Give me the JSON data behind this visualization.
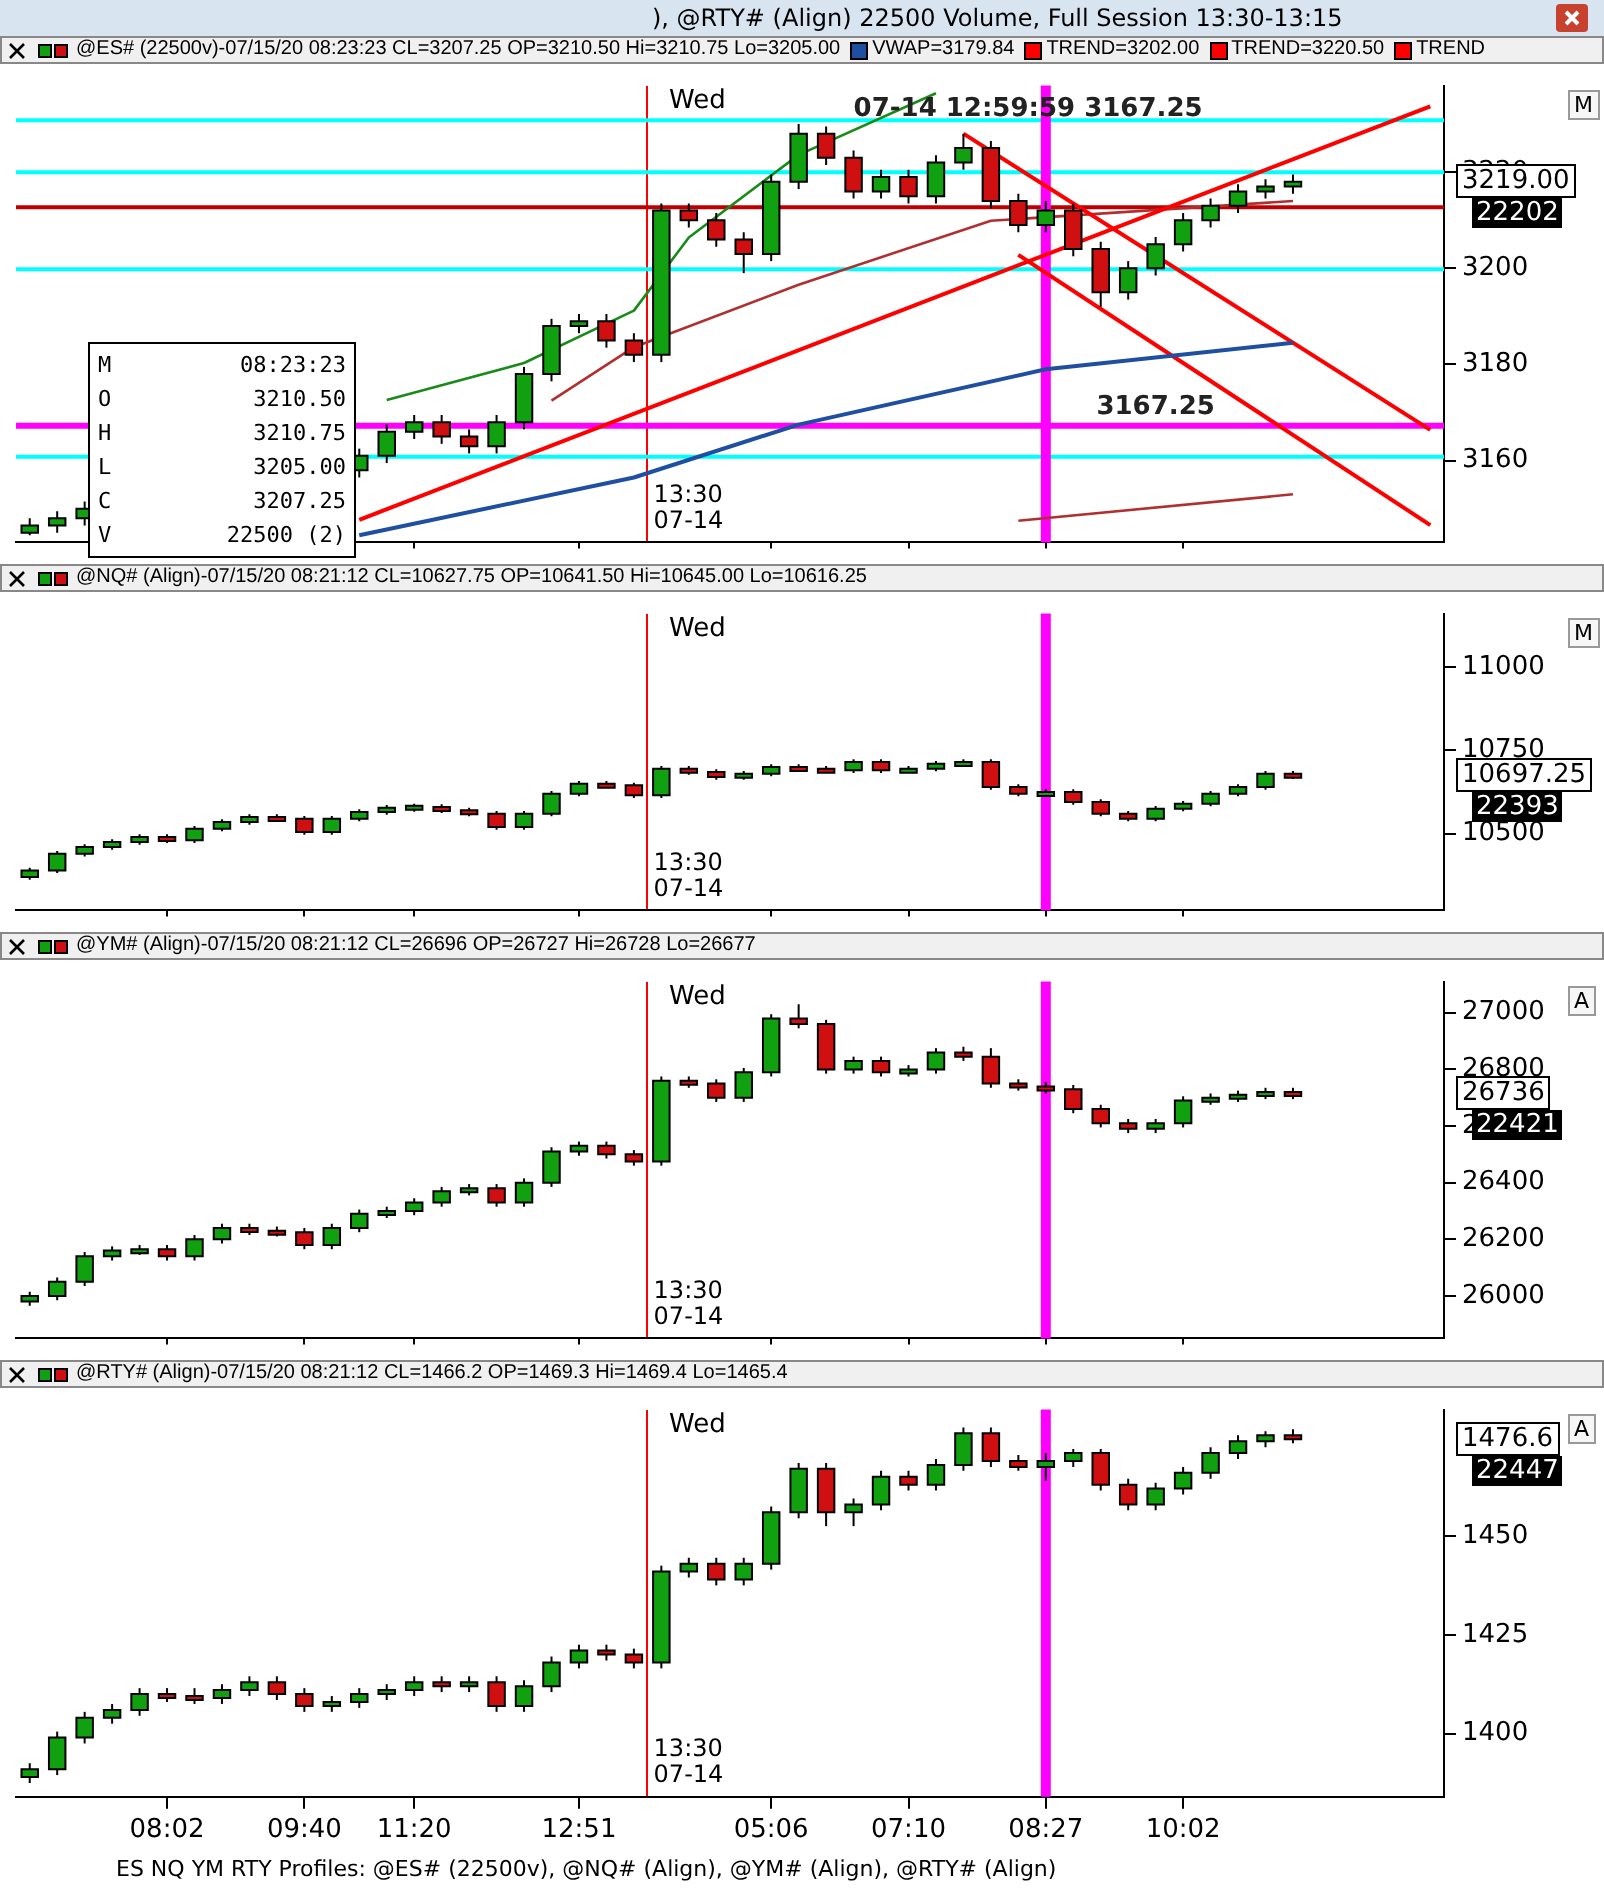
{
  "chart_data": [
    {
      "type": "candlestick",
      "title": "), @RTY# (Align) 22500 Volume, Full Session 13:30-13:15",
      "subtitle": "@ES# (22500v)-07/15/20 08:23:23 CL=3207.25 OP=3210.50 Hi=3210.75 Lo=3205.00",
      "legend": "top",
      "tick_labels": "y",
      "grid": false,
      "categories": [
        null,
        null,
        null,
        null,
        null,
        "08:02",
        null,
        null,
        null,
        null,
        "09:40",
        null,
        null,
        null,
        "11:20",
        null,
        null,
        null,
        null,
        null,
        "12:51",
        null,
        null,
        null,
        null,
        null,
        null,
        "05:06",
        null,
        null,
        null,
        null,
        "07:10",
        null,
        null,
        null,
        null,
        "08:27",
        null,
        null,
        null,
        null,
        "10:02",
        null,
        null,
        null,
        null,
        null,
        null,
        null,
        null,
        null
      ],
      "ohlc": [
        [
          3145,
          3148,
          3144.5,
          3146.5
        ],
        [
          3146.5,
          3149.5,
          3145,
          3148
        ],
        [
          3148,
          3151.5,
          3146.5,
          3150
        ],
        null,
        null,
        null,
        null,
        null,
        null,
        null,
        null,
        null,
        [
          3158,
          3162.5,
          3156.5,
          3161
        ],
        [
          3161,
          3167.5,
          3159.5,
          3166
        ],
        [
          3166,
          3169.5,
          3164.5,
          3168
        ],
        [
          3168,
          3169.5,
          3163.5,
          3165
        ],
        [
          3165,
          3166.5,
          3161.5,
          3163
        ],
        [
          3163,
          3169.5,
          3161.5,
          3168
        ],
        [
          3168,
          3179.5,
          3166.5,
          3178
        ],
        [
          3178,
          3189.5,
          3176.5,
          3188
        ],
        [
          3188,
          3190.5,
          3186.5,
          3189
        ],
        [
          3189,
          3190.5,
          3183.5,
          3185
        ],
        [
          3185,
          3186.5,
          3180.5,
          3182
        ],
        [
          3182,
          3213.5,
          3180.5,
          3212
        ],
        [
          3212,
          3213.5,
          3208.5,
          3210
        ],
        [
          3210,
          3211.5,
          3204.5,
          3206
        ],
        [
          3206,
          3207.5,
          3199,
          3203
        ],
        [
          3203,
          3219.5,
          3201.5,
          3218
        ],
        [
          3218,
          3230,
          3216.5,
          3228
        ],
        [
          3228,
          3229.5,
          3221.5,
          3223
        ],
        [
          3223,
          3224.5,
          3214.5,
          3216
        ],
        [
          3216,
          3220.5,
          3214.5,
          3219
        ],
        [
          3219,
          3220.5,
          3213.5,
          3215
        ],
        [
          3215,
          3223.5,
          3213.5,
          3222
        ],
        [
          3222,
          3228,
          3220.5,
          3225
        ],
        [
          3225,
          3226.5,
          3212.5,
          3214
        ],
        [
          3214,
          3215.5,
          3207.5,
          3209
        ],
        [
          3209,
          3214,
          3207.5,
          3212
        ],
        [
          3212,
          3213.5,
          3202.5,
          3204
        ],
        [
          3204,
          3205.5,
          3192,
          3195
        ],
        [
          3195,
          3201.5,
          3193.5,
          3200
        ],
        [
          3200,
          3206.5,
          3198.5,
          3205
        ],
        [
          3205,
          3211.5,
          3203.5,
          3210
        ],
        [
          3210,
          3214.5,
          3208.5,
          3213
        ],
        [
          3213,
          3217.5,
          3211.5,
          3216
        ],
        [
          3216,
          3218.5,
          3214.5,
          3217
        ],
        [
          3217,
          3219.5,
          3215.5,
          3218
        ],
        null,
        null,
        null,
        null,
        null
      ],
      "ylim": [
        3143,
        3238
      ],
      "yticks": [
        3160,
        3180,
        3200,
        3220
      ],
      "series": [
        {
          "type": "line",
          "name": "VWAP=3179.84",
          "color": "#1f4fa0",
          "values": [
            null,
            null,
            null,
            null,
            null,
            null,
            null,
            null,
            null,
            null,
            null,
            null,
            3144.5,
            null,
            null,
            null,
            null,
            null,
            null,
            null,
            null,
            null,
            3156.5,
            null,
            null,
            null,
            null,
            null,
            3167.5,
            null,
            null,
            null,
            null,
            null,
            null,
            null,
            null,
            3179,
            null,
            null,
            null,
            null,
            null,
            null,
            null,
            null,
            3184.5,
            null,
            null,
            null,
            null,
            null
          ]
        },
        {
          "type": "line",
          "name": "TREND=3202.00",
          "color": "#ff0000",
          "values": [
            null,
            null,
            null,
            null,
            null,
            null,
            null,
            null,
            null,
            null,
            null,
            null,
            3147.7,
            null,
            null,
            null,
            null,
            null,
            null,
            null,
            null,
            null,
            null,
            null,
            null,
            null,
            null,
            null,
            null,
            null,
            null,
            null,
            null,
            null,
            null,
            null,
            null,
            null,
            null,
            null,
            null,
            null,
            null,
            null,
            null,
            null,
            null,
            null,
            null,
            null,
            null,
            3233.7
          ]
        },
        {
          "type": "line",
          "name": "TREND=3220.50",
          "color": "#ff0000",
          "values": [
            null,
            null,
            null,
            null,
            null,
            null,
            null,
            null,
            null,
            null,
            null,
            null,
            null,
            null,
            null,
            null,
            null,
            null,
            null,
            null,
            null,
            null,
            null,
            null,
            null,
            null,
            null,
            null,
            null,
            null,
            null,
            null,
            null,
            null,
            3228,
            null,
            null,
            null,
            null,
            null,
            null,
            null,
            null,
            null,
            null,
            null,
            null,
            null,
            null,
            null,
            null,
            3166.4
          ]
        },
        {
          "type": "line",
          "name": "TREND",
          "color": "#ff0000",
          "values": [
            null,
            null,
            null,
            null,
            null,
            null,
            null,
            null,
            null,
            null,
            null,
            null,
            null,
            null,
            null,
            null,
            null,
            null,
            null,
            null,
            null,
            null,
            null,
            null,
            null,
            null,
            null,
            null,
            null,
            null,
            null,
            null,
            null,
            null,
            null,
            null,
            3202.8,
            null,
            null,
            null,
            null,
            null,
            null,
            null,
            null,
            null,
            null,
            null,
            null,
            null,
            null,
            3146.6
          ]
        },
        {
          "type": "line",
          "color": "#1a8a1a",
          "values": [
            null,
            null,
            null,
            null,
            null,
            null,
            null,
            null,
            null,
            null,
            null,
            null,
            null,
            3172.6,
            null,
            null,
            null,
            null,
            3180.3,
            null,
            null,
            null,
            3191.2,
            null,
            3206.4,
            null,
            null,
            null,
            3223.6,
            null,
            null,
            null,
            null,
            3236.4,
            null,
            null,
            null,
            null,
            null,
            null,
            null,
            null,
            null,
            null,
            null,
            null,
            null,
            null,
            null,
            null,
            null,
            null
          ]
        },
        {
          "type": "line",
          "color": "#b03030",
          "values": [
            null,
            null,
            null,
            null,
            null,
            null,
            null,
            null,
            null,
            null,
            null,
            null,
            null,
            null,
            null,
            null,
            null,
            null,
            null,
            3172.5,
            null,
            null,
            3183.6,
            null,
            null,
            null,
            null,
            null,
            3196.6,
            null,
            null,
            null,
            null,
            null,
            null,
            3209.9,
            null,
            null,
            null,
            null,
            null,
            null,
            null,
            null,
            null,
            null,
            3214,
            null,
            null,
            null,
            null,
            null
          ]
        },
        {
          "type": "line",
          "color": "#b03030",
          "values": [
            null,
            null,
            null,
            null,
            null,
            null,
            null,
            null,
            null,
            null,
            null,
            null,
            null,
            null,
            null,
            null,
            null,
            null,
            null,
            null,
            null,
            null,
            null,
            null,
            null,
            null,
            null,
            null,
            null,
            null,
            null,
            null,
            null,
            null,
            null,
            null,
            3147.5,
            null,
            null,
            null,
            null,
            null,
            null,
            null,
            null,
            null,
            3153,
            null,
            null,
            null,
            null,
            null
          ]
        }
      ],
      "ref_lines": [
        {
          "axis": "y",
          "value": 3212.7,
          "color": "#c00000"
        },
        {
          "axis": "y",
          "value": 3230.8,
          "color": "#00ffff"
        },
        {
          "axis": "y",
          "value": 3220,
          "color": "#00ffff"
        },
        {
          "axis": "y",
          "value": 3199.8,
          "color": "#00ffff"
        },
        {
          "axis": "y",
          "value": 3160.8,
          "color": "#00ffff"
        },
        {
          "axis": "y",
          "value": 3167.25,
          "label": "3167.25",
          "color": "#ff00ff"
        },
        {
          "axis": "x",
          "value": "08:27",
          "color": "#ff00ff"
        }
      ],
      "annotations": [
        "Wed",
        "M 08:23:23",
        "O 3210.50",
        "H 3210.75",
        "L 3205.00",
        "C 3207.25",
        "V 22500 (2)",
        "3219.00",
        "22202",
        "M",
        "07-14 12:59:59 3167.25",
        "13:30\n07-14"
      ]
    },
    {
      "type": "candlestick",
      "subtitle": "@NQ# (Align)-07/15/20 08:21:12 CL=10627.75 OP=10641.50 Hi=10645.00 Lo=10616.25",
      "tick_labels": "y",
      "grid": false,
      "categories": [
        null,
        null,
        null,
        null,
        null,
        "08:02",
        null,
        null,
        null,
        null,
        "09:40",
        null,
        null,
        null,
        "11:20",
        null,
        null,
        null,
        null,
        null,
        "12:51",
        null,
        null,
        null,
        null,
        null,
        null,
        "05:06",
        null,
        null,
        null,
        null,
        "07:10",
        null,
        null,
        null,
        null,
        "08:27",
        null,
        null,
        null,
        null,
        "10:02",
        null,
        null,
        null,
        null,
        null,
        null,
        null,
        null,
        null
      ],
      "ohlc": [
        [
          10370,
          10398,
          10362,
          10390
        ],
        [
          10390,
          10448,
          10382,
          10440
        ],
        [
          10440,
          10468,
          10432,
          10460
        ],
        [
          10460,
          10483,
          10452,
          10475
        ],
        [
          10475,
          10498,
          10467,
          10490
        ],
        [
          10490,
          10498,
          10472,
          10480
        ],
        [
          10480,
          10523,
          10472,
          10515
        ],
        [
          10515,
          10543,
          10507,
          10535
        ],
        [
          10535,
          10558,
          10527,
          10550
        ],
        [
          10550,
          10558,
          10537,
          10545
        ],
        [
          10545,
          10553,
          10497,
          10505
        ],
        [
          10505,
          10553,
          10497,
          10545
        ],
        [
          10545,
          10573,
          10537,
          10565
        ],
        [
          10565,
          10586,
          10557,
          10578
        ],
        [
          10572,
          10590,
          10566,
          10584
        ],
        [
          10580,
          10588,
          10562,
          10570
        ],
        [
          10570,
          10578,
          10552,
          10560
        ],
        [
          10560,
          10568,
          10512,
          10520
        ],
        [
          10520,
          10568,
          10512,
          10560
        ],
        [
          10560,
          10628,
          10552,
          10620
        ],
        [
          10620,
          10658,
          10612,
          10650
        ],
        [
          10650,
          10658,
          10637,
          10645
        ],
        [
          10645,
          10653,
          10607,
          10615
        ],
        [
          10615,
          10703,
          10607,
          10695
        ],
        [
          10695,
          10703,
          10677,
          10685
        ],
        [
          10685,
          10693,
          10662,
          10670
        ],
        [
          10670,
          10688,
          10662,
          10680
        ],
        [
          10680,
          10708,
          10672,
          10700
        ],
        [
          10700,
          10708,
          10687,
          10695
        ],
        [
          10695,
          10703,
          10687,
          10690
        ],
        [
          10690,
          10723,
          10682,
          10715
        ],
        [
          10715,
          10723,
          10682,
          10690
        ],
        [
          10690,
          10703,
          10682,
          10695
        ],
        [
          10695,
          10718,
          10687,
          10710
        ],
        [
          10710,
          10723,
          10702,
          10715
        ],
        [
          10715,
          10723,
          10632,
          10640
        ],
        [
          10640,
          10648,
          10612,
          10620
        ],
        [
          10620,
          10633,
          10612,
          10625
        ],
        [
          10625,
          10633,
          10587,
          10595
        ],
        [
          10595,
          10603,
          10552,
          10560
        ],
        [
          10560,
          10568,
          10537,
          10545
        ],
        [
          10545,
          10583,
          10537,
          10575
        ],
        [
          10575,
          10598,
          10567,
          10590
        ],
        [
          10590,
          10628,
          10582,
          10620
        ],
        [
          10620,
          10648,
          10612,
          10640
        ],
        [
          10640,
          10688,
          10632,
          10680
        ],
        [
          10680,
          10688,
          10664,
          10672
        ],
        null,
        null,
        null,
        null,
        null
      ],
      "ylim": [
        10270,
        11160
      ],
      "yticks": [
        10500,
        10750,
        11000
      ],
      "ref_lines": [
        {
          "axis": "x",
          "value": "08:27",
          "color": "#ff00ff"
        }
      ],
      "annotations": [
        "Wed",
        "10697.25",
        "22393",
        "M",
        "13:30\n07-14"
      ]
    },
    {
      "type": "candlestick",
      "subtitle": "@YM# (Align)-07/15/20 08:21:12 CL=26696 OP=26727 Hi=26728 Lo=26677",
      "tick_labels": "y",
      "grid": false,
      "categories": [
        null,
        null,
        null,
        null,
        null,
        "08:02",
        null,
        null,
        null,
        null,
        "09:40",
        null,
        null,
        null,
        "11:20",
        null,
        null,
        null,
        null,
        null,
        "12:51",
        null,
        null,
        null,
        null,
        null,
        null,
        "05:06",
        null,
        null,
        null,
        null,
        "07:10",
        null,
        null,
        null,
        null,
        "08:27",
        null,
        null,
        null,
        null,
        "10:02",
        null,
        null,
        null,
        null,
        null,
        null,
        null,
        null,
        null
      ],
      "ohlc": [
        [
          25980,
          26015,
          25965,
          26000
        ],
        [
          26000,
          26065,
          25985,
          26050
        ],
        [
          26050,
          26155,
          26035,
          26140
        ],
        [
          26140,
          26175,
          26125,
          26160
        ],
        [
          26160,
          26180,
          26145,
          26165
        ],
        [
          26165,
          26180,
          26125,
          26140
        ],
        [
          26140,
          26215,
          26125,
          26200
        ],
        [
          26200,
          26255,
          26185,
          26240
        ],
        [
          26240,
          26255,
          26215,
          26230
        ],
        [
          26230,
          26245,
          26210,
          26225
        ],
        [
          26225,
          26240,
          26165,
          26180
        ],
        [
          26180,
          26255,
          26165,
          26240
        ],
        [
          26240,
          26305,
          26225,
          26290
        ],
        [
          26290,
          26315,
          26275,
          26300
        ],
        [
          26300,
          26345,
          26285,
          26330
        ],
        [
          26330,
          26385,
          26315,
          26370
        ],
        [
          26370,
          26395,
          26355,
          26380
        ],
        [
          26380,
          26395,
          26315,
          26330
        ],
        [
          26330,
          26415,
          26315,
          26400
        ],
        [
          26400,
          26525,
          26385,
          26510
        ],
        [
          26510,
          26545,
          26495,
          26530
        ],
        [
          26530,
          26545,
          26485,
          26500
        ],
        [
          26500,
          26515,
          26460,
          26475
        ],
        [
          26475,
          26775,
          26460,
          26760
        ],
        [
          26760,
          26775,
          26735,
          26750
        ],
        [
          26750,
          26765,
          26685,
          26700
        ],
        [
          26700,
          26805,
          26685,
          26790
        ],
        [
          26790,
          26995,
          26775,
          26980
        ],
        [
          26980,
          27030,
          26945,
          26960
        ],
        [
          26960,
          26975,
          26785,
          26800
        ],
        [
          26800,
          26845,
          26785,
          26830
        ],
        [
          26830,
          26845,
          26775,
          26790
        ],
        [
          26790,
          26815,
          26775,
          26800
        ],
        [
          26800,
          26875,
          26785,
          26860
        ],
        [
          26860,
          26880,
          26830,
          26845
        ],
        [
          26845,
          26875,
          26735,
          26750
        ],
        [
          26750,
          26765,
          26725,
          26740
        ],
        [
          26740,
          26755,
          26715,
          26730
        ],
        [
          26730,
          26745,
          26645,
          26660
        ],
        [
          26660,
          26675,
          26595,
          26610
        ],
        [
          26610,
          26625,
          26575,
          26590
        ],
        [
          26590,
          26625,
          26575,
          26610
        ],
        [
          26610,
          26705,
          26595,
          26690
        ],
        [
          26690,
          26715,
          26675,
          26700
        ],
        [
          26700,
          26725,
          26685,
          26710
        ],
        [
          26710,
          26735,
          26695,
          26720
        ],
        [
          26720,
          26735,
          26695,
          26710
        ],
        null,
        null,
        null,
        null,
        null
      ],
      "ylim": [
        25850,
        27110
      ],
      "yticks": [
        26000,
        26200,
        26400,
        26600,
        26800,
        27000
      ],
      "ref_lines": [
        {
          "axis": "x",
          "value": "08:27",
          "color": "#ff00ff"
        }
      ],
      "annotations": [
        "Wed",
        "26736",
        "22421",
        "A",
        "13:30\n07-14"
      ]
    },
    {
      "type": "candlestick",
      "subtitle": "@RTY# (Align)-07/15/20 08:21:12 CL=1466.2 OP=1469.3 Hi=1469.4 Lo=1465.4",
      "grid": false,
      "categories": [
        null,
        null,
        null,
        null,
        null,
        "08:02",
        null,
        null,
        null,
        null,
        "09:40",
        null,
        null,
        null,
        "11:20",
        null,
        null,
        null,
        null,
        null,
        "12:51",
        null,
        null,
        null,
        null,
        null,
        null,
        "05:06",
        null,
        null,
        null,
        null,
        "07:10",
        null,
        null,
        null,
        null,
        "08:27",
        null,
        null,
        null,
        null,
        "10:02",
        null,
        null,
        null,
        null,
        null,
        null,
        null,
        null,
        null
      ],
      "ohlc": [
        [
          1389,
          1392.5,
          1387.5,
          1391
        ],
        [
          1391,
          1400.5,
          1389.5,
          1399
        ],
        [
          1399,
          1405.5,
          1397.5,
          1404
        ],
        [
          1404,
          1407.5,
          1402.5,
          1406
        ],
        [
          1406,
          1411.5,
          1404.5,
          1410
        ],
        [
          1410,
          1411.5,
          1408,
          1409.5
        ],
        [
          1409.5,
          1411.5,
          1407.5,
          1409
        ],
        [
          1409,
          1412.5,
          1407.5,
          1411
        ],
        [
          1411,
          1414.5,
          1409.5,
          1413
        ],
        [
          1413,
          1414.5,
          1408.5,
          1410
        ],
        [
          1410,
          1411.5,
          1405.5,
          1407
        ],
        [
          1407,
          1409.5,
          1405.5,
          1408
        ],
        [
          1408,
          1411.5,
          1406.5,
          1410
        ],
        [
          1410,
          1412.5,
          1408.5,
          1411
        ],
        [
          1411,
          1414.5,
          1409.5,
          1413
        ],
        [
          1413,
          1414.5,
          1410.5,
          1412
        ],
        [
          1412,
          1414.5,
          1410.5,
          1413
        ],
        [
          1413,
          1414.5,
          1405.5,
          1407
        ],
        [
          1407,
          1413.5,
          1405.5,
          1412
        ],
        [
          1412,
          1419.5,
          1410.5,
          1418
        ],
        [
          1418,
          1422.5,
          1416.5,
          1421
        ],
        [
          1421,
          1422.5,
          1418.5,
          1420
        ],
        [
          1420,
          1421.5,
          1416.5,
          1418
        ],
        [
          1418,
          1442.5,
          1416.5,
          1441
        ],
        [
          1441,
          1444.5,
          1439.5,
          1443
        ],
        [
          1443,
          1444.5,
          1437.5,
          1439
        ],
        [
          1439,
          1444.5,
          1437.5,
          1443
        ],
        [
          1443,
          1457.5,
          1441.5,
          1456
        ],
        [
          1456,
          1468.5,
          1454.5,
          1467
        ],
        [
          1467,
          1468.5,
          1452.5,
          1456
        ],
        [
          1456,
          1459.5,
          1452.5,
          1458
        ],
        [
          1458,
          1466.5,
          1456.5,
          1465
        ],
        [
          1465,
          1466.5,
          1461.5,
          1463
        ],
        [
          1463,
          1469.5,
          1461.5,
          1468
        ],
        [
          1468,
          1477.5,
          1466.5,
          1476
        ],
        [
          1476,
          1477.5,
          1467.5,
          1469
        ],
        [
          1469,
          1470.5,
          1466.5,
          1467.5
        ],
        [
          1467.5,
          1471,
          1464,
          1469
        ],
        [
          1469,
          1472,
          1467.5,
          1471
        ],
        [
          1471,
          1472,
          1461.5,
          1463
        ],
        [
          1463,
          1464.5,
          1456.5,
          1458
        ],
        [
          1458,
          1463.5,
          1456.5,
          1462
        ],
        [
          1462,
          1467.5,
          1460.5,
          1466
        ],
        [
          1466,
          1472.5,
          1464.5,
          1471
        ],
        [
          1471,
          1475.5,
          1469.5,
          1474
        ],
        [
          1474,
          1476.5,
          1472.5,
          1475.5
        ],
        [
          1475.5,
          1477,
          1473.5,
          1474.5
        ],
        null,
        null,
        null,
        null,
        null
      ],
      "ylim": [
        1384,
        1482
      ],
      "yticks": [
        1400,
        1425,
        1450
      ],
      "ref_lines": [
        {
          "axis": "x",
          "value": "08:27",
          "color": "#ff00ff"
        }
      ],
      "annotations": [
        "Wed",
        "1476.6",
        "22447",
        "A",
        "13:30\n07-14",
        "ES NQ YM RTY Profiles: @ES# (22500v), @NQ# (Align), @YM# (Align), @RTY# (Align)"
      ]
    }
  ]
}
